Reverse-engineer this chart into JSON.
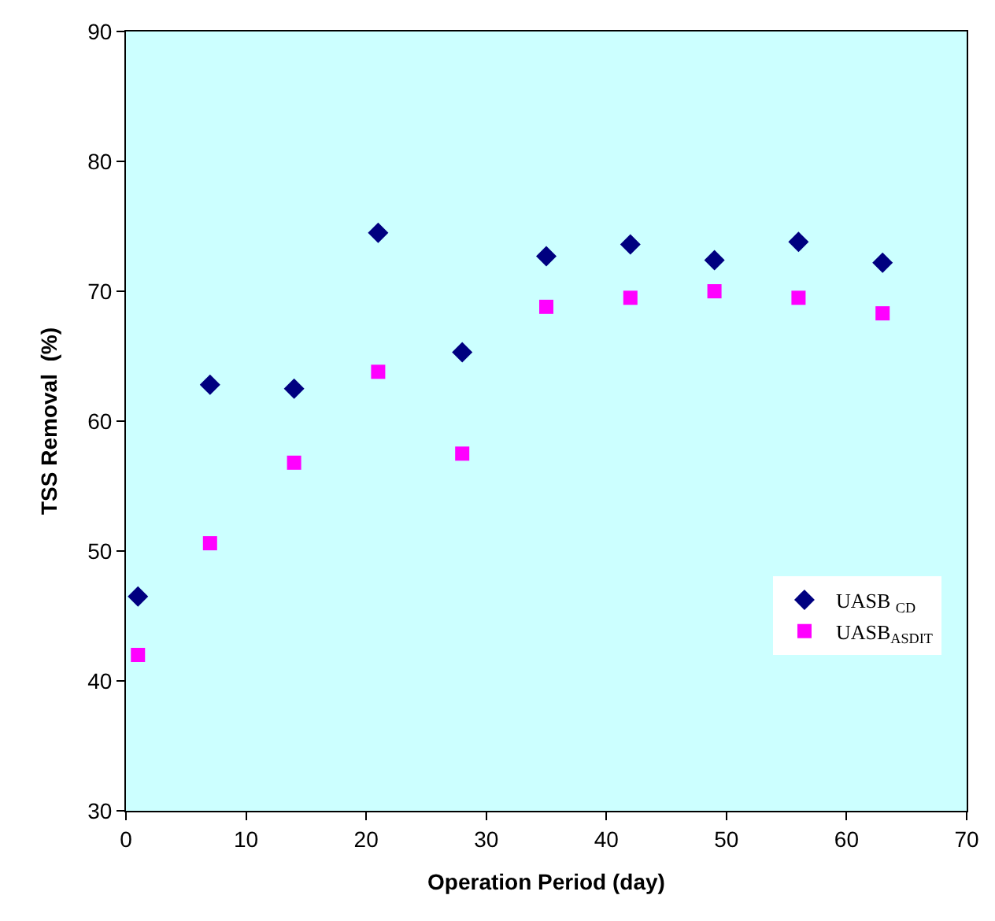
{
  "chart_data": {
    "type": "scatter",
    "xlabel": "Operation Period (day)",
    "ylabel": "TSS Removal  (%)",
    "x": [
      1,
      7,
      14,
      21,
      28,
      35,
      42,
      49,
      56,
      63
    ],
    "series": [
      {
        "name": "UASB $_{CD}$",
        "color": "#000080",
        "marker": "diamond",
        "values": [
          46.5,
          62.8,
          62.5,
          74.5,
          65.3,
          72.7,
          73.6,
          72.4,
          73.8,
          72.2
        ]
      },
      {
        "name": "UASB$_{ASDIT}$",
        "color": "#ff00ff",
        "marker": "square",
        "values": [
          42.0,
          50.6,
          56.8,
          63.8,
          57.5,
          68.8,
          69.5,
          70.0,
          69.5,
          68.3
        ]
      }
    ],
    "xlim": [
      0,
      70
    ],
    "xticks": [
      0,
      10,
      20,
      30,
      40,
      50,
      60,
      70
    ],
    "ylim": [
      30,
      90
    ],
    "yticks": [
      30,
      40,
      50,
      60,
      70,
      80,
      90
    ],
    "grid": false,
    "legend": "bottom right"
  }
}
